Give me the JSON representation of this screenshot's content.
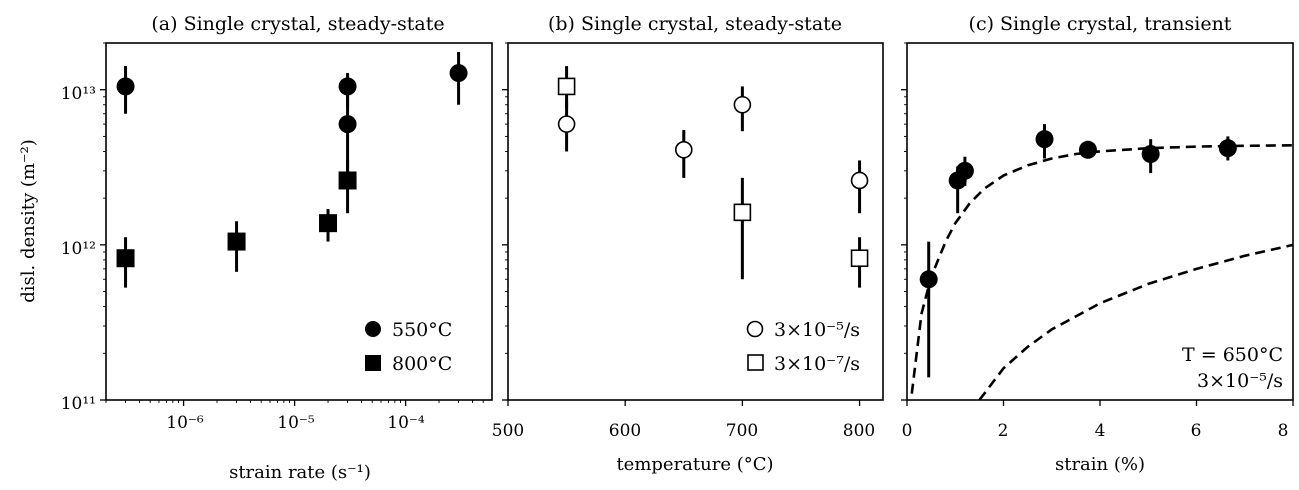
{
  "chart_data": [
    {
      "type": "scatter",
      "title": "(a) Single crystal, steady-state",
      "xlabel": "strain rate (s⁻¹)",
      "ylabel": "disl. density (m⁻²)",
      "xscale": "log",
      "yscale": "log",
      "xlim": [
        2e-07,
        0.0006
      ],
      "ylim": [
        100000000000.0,
        20000000000000.0
      ],
      "x_ticks": [
        "10⁻⁶",
        "10⁻⁵",
        "10⁻⁴"
      ],
      "y_ticks": [
        "10¹¹",
        "10¹²",
        "10¹³"
      ],
      "legend_position": "bottom-right",
      "series": [
        {
          "name": "550°C",
          "marker": "filled-circle",
          "x": [
            3e-07,
            3e-05,
            3e-05,
            0.0003
          ],
          "y": [
            10500000000000.0,
            10500000000000.0,
            6000000000000.0,
            12800000000000.0
          ],
          "err_low": [
            7000000000000.0,
            7600000000000.0,
            3000000000000.0,
            8000000000000.0
          ],
          "err_high": [
            14200000000000.0,
            12800000000000.0,
            10500000000000.0,
            17500000000000.0
          ]
        },
        {
          "name": "800°C",
          "marker": "filled-square",
          "x": [
            3e-07,
            3e-06,
            2e-05,
            3e-05
          ],
          "y": [
            820000000000.0,
            1050000000000.0,
            1380000000000.0,
            2600000000000.0
          ],
          "err_low": [
            530000000000.0,
            670000000000.0,
            1050000000000.0,
            1600000000000.0
          ],
          "err_high": [
            1120000000000.0,
            1420000000000.0,
            1700000000000.0,
            3500000000000.0
          ]
        }
      ]
    },
    {
      "type": "scatter",
      "title": "(b) Single crystal, steady-state",
      "xlabel": "temperature (°C)",
      "yscale": "log",
      "xlim": [
        500,
        820
      ],
      "ylim": [
        100000000000.0,
        20000000000000.0
      ],
      "x_ticks": [
        500,
        600,
        700,
        800
      ],
      "legend_position": "bottom-right",
      "series": [
        {
          "name": "3×10⁻⁵/s",
          "marker": "open-circle",
          "x": [
            550,
            650,
            700,
            800
          ],
          "y": [
            6000000000000.0,
            4100000000000.0,
            8000000000000.0,
            2600000000000.0
          ],
          "err_low": [
            4000000000000.0,
            2700000000000.0,
            5400000000000.0,
            1600000000000.0
          ],
          "err_high": [
            8500000000000.0,
            5500000000000.0,
            10500000000000.0,
            3500000000000.0
          ]
        },
        {
          "name": "3×10⁻⁷/s",
          "marker": "open-square",
          "x": [
            550,
            700,
            800
          ],
          "y": [
            10500000000000.0,
            1620000000000.0,
            820000000000.0
          ],
          "err_low": [
            7600000000000.0,
            600000000000.0,
            530000000000.0
          ],
          "err_high": [
            14200000000000.0,
            2700000000000.0,
            1120000000000.0
          ]
        }
      ]
    },
    {
      "type": "scatter",
      "title": "(c) Single crystal, transient",
      "xlabel": "strain (%)",
      "yscale": "log",
      "xlim": [
        0,
        8
      ],
      "ylim": [
        100000000000.0,
        20000000000000.0
      ],
      "x_ticks": [
        0,
        2,
        4,
        6,
        8
      ],
      "annotation": [
        "T = 650°C",
        "3×10⁻⁵/s"
      ],
      "series": [
        {
          "marker": "filled-circle",
          "x": [
            0.45,
            1.05,
            1.2,
            2.85,
            3.75,
            5.05,
            6.65
          ],
          "y": [
            600000000000.0,
            2600000000000.0,
            3000000000000.0,
            4800000000000.0,
            4100000000000.0,
            3850000000000.0,
            4200000000000.0
          ],
          "err_low": [
            140000000000.0,
            1600000000000.0,
            2400000000000.0,
            3600000000000.0,
            3600000000000.0,
            2900000000000.0,
            3500000000000.0
          ],
          "err_high": [
            1050000000000.0,
            3200000000000.0,
            3700000000000.0,
            6000000000000.0,
            4500000000000.0,
            4800000000000.0,
            5000000000000.0
          ]
        }
      ],
      "fit_curves": [
        {
          "style": "dashed",
          "x": [
            0.1,
            0.3,
            0.5,
            0.8,
            1.0,
            1.3,
            1.6,
            2.0,
            2.5,
            3.0,
            3.5,
            4.0,
            5.0,
            6.0,
            7.0,
            8.0
          ],
          "y": [
            110000000000.0,
            360000000000.0,
            620000000000.0,
            1050000000000.0,
            1380000000000.0,
            1850000000000.0,
            2300000000000.0,
            2800000000000.0,
            3250000000000.0,
            3600000000000.0,
            3850000000000.0,
            4000000000000.0,
            4200000000000.0,
            4300000000000.0,
            4350000000000.0,
            4380000000000.0
          ]
        },
        {
          "style": "dashed",
          "x": [
            1.5,
            2.0,
            2.5,
            3.0,
            4.0,
            5.0,
            6.0,
            7.0,
            8.0
          ],
          "y": [
            100000000000.0,
            160000000000.0,
            220000000000.0,
            285000000000.0,
            420000000000.0,
            560000000000.0,
            700000000000.0,
            850000000000.0,
            1000000000000.0
          ]
        }
      ]
    }
  ]
}
